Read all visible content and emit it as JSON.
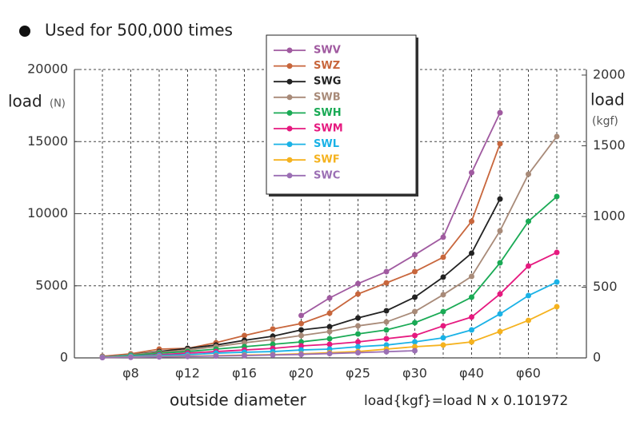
{
  "chart_data": {
    "type": "line",
    "note": "Used for 500,000 times",
    "ylabel": "load",
    "ylabel_unit": "(N)",
    "y2label": "load",
    "y2label_unit": "(kgf)",
    "xlabel": "outside diameter",
    "annotation": "load{kgf}=load N x 0.101972",
    "categories": [
      null,
      "φ8",
      null,
      "φ12",
      null,
      "φ16",
      null,
      "φ20",
      null,
      "φ25",
      null,
      "φ30",
      null,
      "φ40",
      null,
      "φ60",
      null
    ],
    "ylim": [
      0,
      20000
    ],
    "yticks": [
      0,
      5000,
      10000,
      15000,
      20000
    ],
    "y2lim": [
      0,
      2039.44
    ],
    "y2ticks": [
      0,
      500,
      1000,
      1500,
      2000
    ],
    "grid": true,
    "legend": "top",
    "series": [
      {
        "name": "SWV",
        "color": "#a05aa0",
        "values": [
          null,
          null,
          null,
          null,
          null,
          null,
          null,
          2940,
          4155,
          5150,
          5980,
          7150,
          8370,
          12850,
          17000,
          null,
          null
        ]
      },
      {
        "name": "SWZ",
        "color": "#c8663c",
        "values": [
          110,
          280,
          610,
          660,
          1050,
          1550,
          2000,
          2380,
          3100,
          4430,
          5200,
          5980,
          6980,
          9470,
          14850,
          null,
          null
        ]
      },
      {
        "name": "SWG",
        "color": "#222222",
        "values": [
          55,
          220,
          440,
          660,
          890,
          1220,
          1500,
          1940,
          2160,
          2770,
          3270,
          4210,
          5600,
          7260,
          11020,
          null,
          null
        ]
      },
      {
        "name": "SWB",
        "color": "#a88a78",
        "values": [
          55,
          220,
          390,
          550,
          775,
          1050,
          1270,
          1550,
          1830,
          2220,
          2490,
          3210,
          4380,
          5650,
          8810,
          12740,
          15350
        ]
      },
      {
        "name": "SWH",
        "color": "#1aaa55",
        "values": [
          55,
          165,
          330,
          440,
          610,
          775,
          940,
          1110,
          1330,
          1660,
          1940,
          2440,
          3210,
          4210,
          6590,
          9470,
          11190
        ]
      },
      {
        "name": "SWM",
        "color": "#e6197f",
        "values": [
          55,
          110,
          220,
          330,
          440,
          550,
          660,
          830,
          940,
          1110,
          1330,
          1550,
          2220,
          2830,
          4430,
          6370,
          7310
        ]
      },
      {
        "name": "SWL",
        "color": "#1ab2e6",
        "values": [
          55,
          110,
          165,
          220,
          330,
          390,
          440,
          550,
          610,
          775,
          890,
          1110,
          1390,
          1940,
          3050,
          4320,
          5260
        ]
      },
      {
        "name": "SWF",
        "color": "#f5b21e",
        "values": [
          30,
          60,
          90,
          120,
          150,
          190,
          230,
          280,
          360,
          440,
          610,
          775,
          890,
          1110,
          1830,
          2600,
          3550
        ]
      },
      {
        "name": "SWC",
        "color": "#9b6fb4",
        "values": [
          20,
          40,
          70,
          100,
          130,
          160,
          200,
          240,
          300,
          360,
          430,
          500,
          null,
          null,
          null,
          null,
          null
        ]
      }
    ]
  }
}
